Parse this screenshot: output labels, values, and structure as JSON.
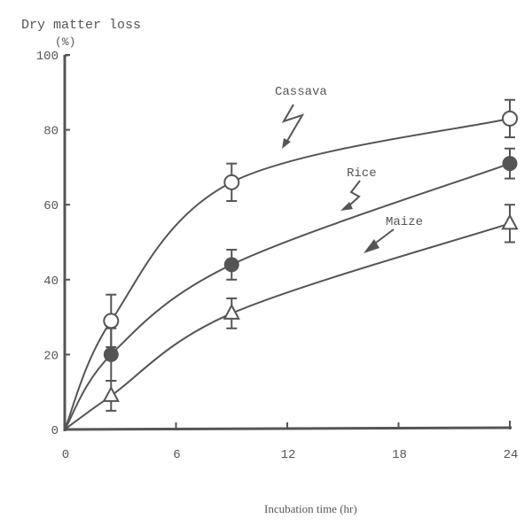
{
  "chart_data": {
    "type": "line",
    "title": "",
    "ylabel": "Dry matter loss",
    "yunit": "(%)",
    "xlabel": "Incubation time (hr)",
    "xlim": [
      0,
      24.5
    ],
    "ylim": [
      0,
      100
    ],
    "xticks": [
      0,
      6,
      12,
      18,
      24
    ],
    "yticks": [
      0,
      20,
      40,
      60,
      80,
      100
    ],
    "grid": false,
    "legend": "inline annotations with arrows",
    "x": [
      0,
      2.5,
      9,
      24
    ],
    "series": [
      {
        "name": "Cassava",
        "marker": "open-circle",
        "values": [
          0,
          29,
          66,
          83
        ],
        "error": [
          0,
          7,
          5,
          5
        ]
      },
      {
        "name": "Rice",
        "marker": "filled-circle",
        "values": [
          0,
          20,
          44,
          71
        ],
        "error": [
          0,
          7,
          4,
          4
        ]
      },
      {
        "name": "Maize",
        "marker": "open-triangle",
        "values": [
          0,
          9,
          31,
          55
        ],
        "error": [
          0,
          4,
          4,
          5
        ]
      }
    ]
  },
  "labels": {
    "ylabel": "Dry matter loss",
    "yunit": "(%)",
    "xlabel": "Incubation time (hr)",
    "cassava": "Cassava",
    "rice": "Rice",
    "maize": "Maize"
  }
}
